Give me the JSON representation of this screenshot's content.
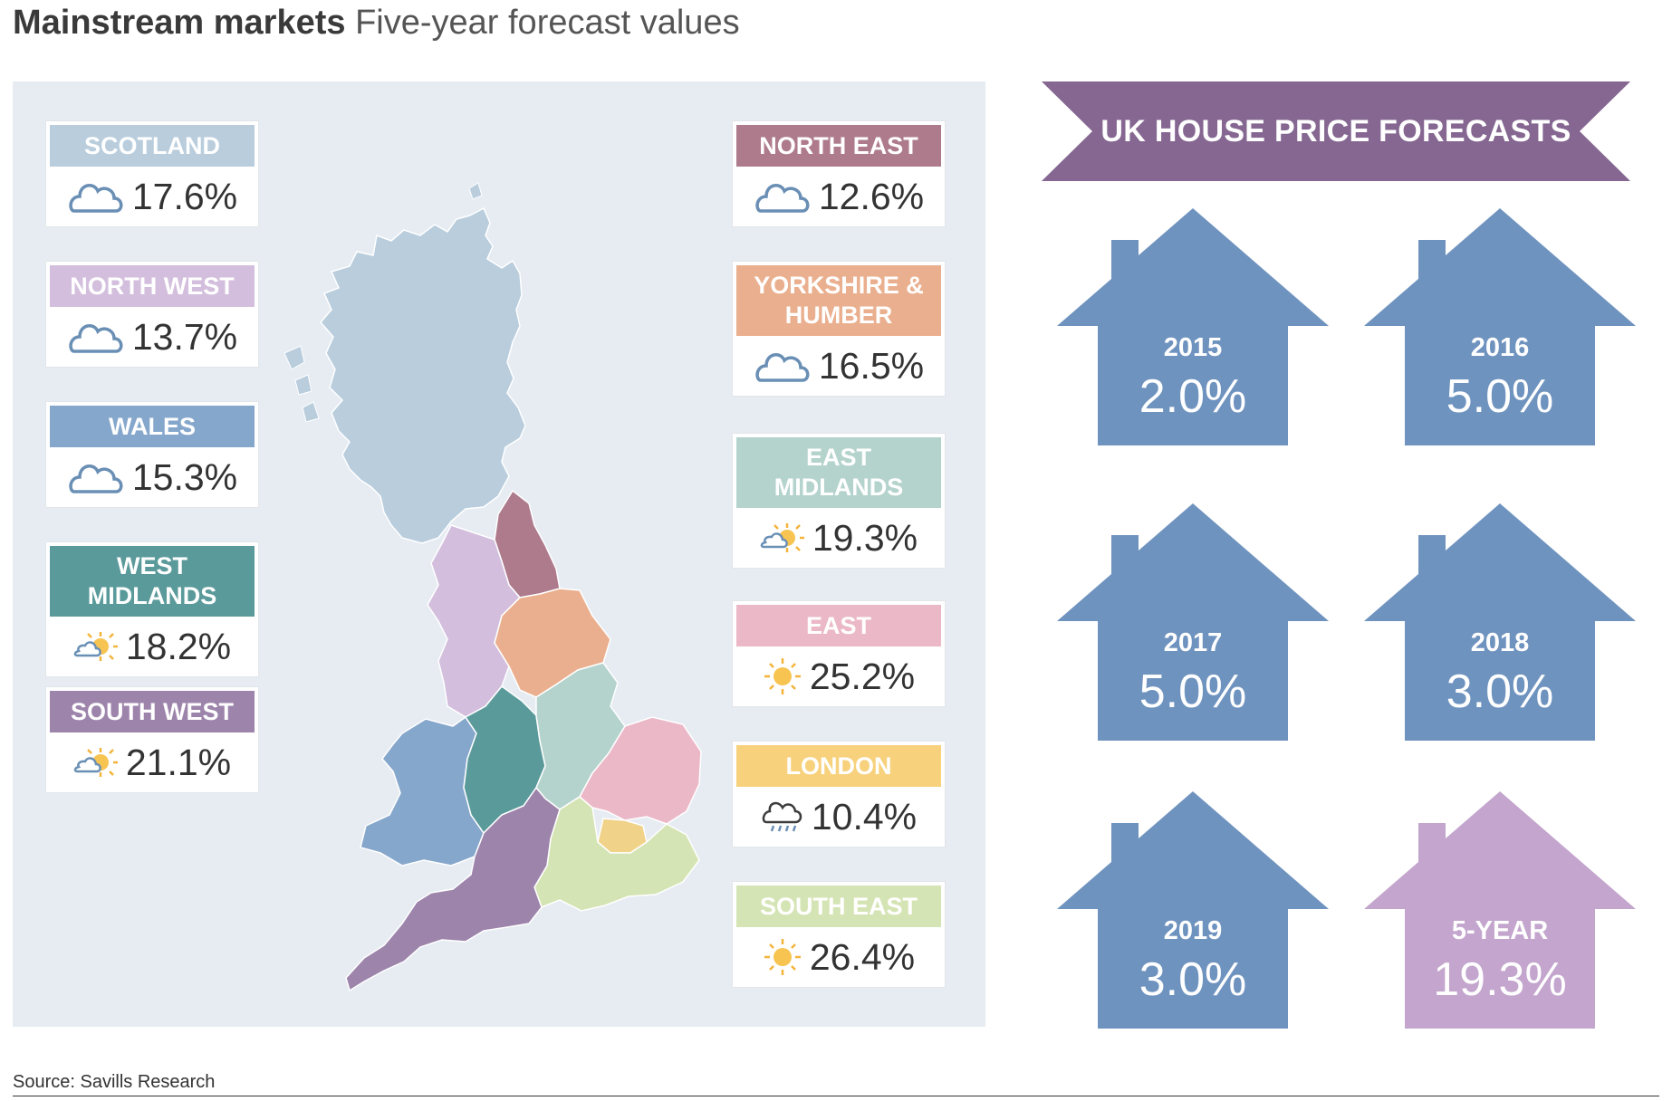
{
  "title": {
    "bold": "Mainstream markets",
    "rest": "Five-year forecast values"
  },
  "regions": [
    {
      "name": "SCOTLAND",
      "value": "17.6%",
      "color": "#b9cddd",
      "icon": "cloud-icon"
    },
    {
      "name": "NORTH WEST",
      "value": "13.7%",
      "color": "#d3bfdd",
      "icon": "cloud-icon"
    },
    {
      "name": "WALES",
      "value": "15.3%",
      "color": "#86a7cc",
      "icon": "cloud-icon"
    },
    {
      "name": "WEST MIDLANDS",
      "value": "18.2%",
      "color": "#5b9a9b",
      "icon": "sun-cloud-icon"
    },
    {
      "name": "SOUTH WEST",
      "value": "21.1%",
      "color": "#9d84ab",
      "icon": "sun-cloud-icon"
    },
    {
      "name": "NORTH EAST",
      "value": "12.6%",
      "color": "#ae7b8d",
      "icon": "cloud-icon"
    },
    {
      "name": "YORKSHIRE & HUMBER",
      "value": "16.5%",
      "color": "#eaaf8e",
      "icon": "cloud-icon"
    },
    {
      "name": "EAST MIDLANDS",
      "value": "19.3%",
      "color": "#b5d3cd",
      "icon": "sun-cloud-icon"
    },
    {
      "name": "EAST",
      "value": "25.2%",
      "color": "#ebb8c8",
      "icon": "sun-icon"
    },
    {
      "name": "LONDON",
      "value": "10.4%",
      "color": "#f7d17c",
      "icon": "rain-cloud-icon"
    },
    {
      "name": "SOUTH EAST",
      "value": "26.4%",
      "color": "#d5e4b4",
      "icon": "sun-icon"
    }
  ],
  "forecast": {
    "banner": "UK HOUSE PRICE FORECASTS",
    "banner_color": "#856791",
    "house_color": "#6f93bf",
    "five_year_color": "#c3a5cd",
    "houses": [
      {
        "year": "2015",
        "value": "2.0%"
      },
      {
        "year": "2016",
        "value": "5.0%"
      },
      {
        "year": "2017",
        "value": "5.0%"
      },
      {
        "year": "2018",
        "value": "3.0%"
      },
      {
        "year": "2019",
        "value": "3.0%"
      },
      {
        "year": "5-YEAR",
        "value": "19.3%"
      }
    ]
  },
  "source": "Source: Savills Research"
}
